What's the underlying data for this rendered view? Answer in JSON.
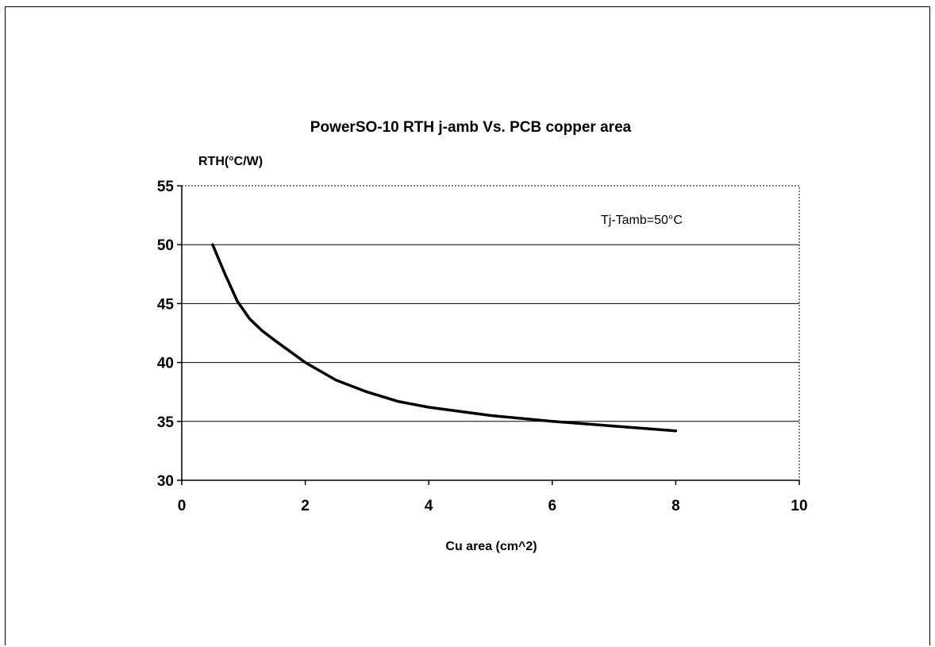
{
  "chart_data": {
    "type": "line",
    "title": "PowerSO-10 RTH j-amb Vs. PCB copper area",
    "ylabel": "RTH(°C/W)",
    "xlabel": "Cu area (cm^2)",
    "annotation": "Tj-Tamb=50°C",
    "xlim": [
      0,
      10
    ],
    "ylim": [
      30,
      55
    ],
    "x_ticks": [
      0,
      2,
      4,
      6,
      8,
      10
    ],
    "y_ticks": [
      30,
      35,
      40,
      45,
      50,
      55
    ],
    "grid": "horizontal",
    "series": [
      {
        "x": [
          0.5,
          0.7,
          0.9,
          1.1,
          1.3,
          1.5,
          2.0,
          2.5,
          3.0,
          3.5,
          4.0,
          5.0,
          6.0,
          7.0,
          8.0
        ],
        "y": [
          50.0,
          47.5,
          45.2,
          43.7,
          42.7,
          41.9,
          40.0,
          38.5,
          37.5,
          36.7,
          36.2,
          35.5,
          35.0,
          34.6,
          34.2
        ]
      }
    ]
  }
}
